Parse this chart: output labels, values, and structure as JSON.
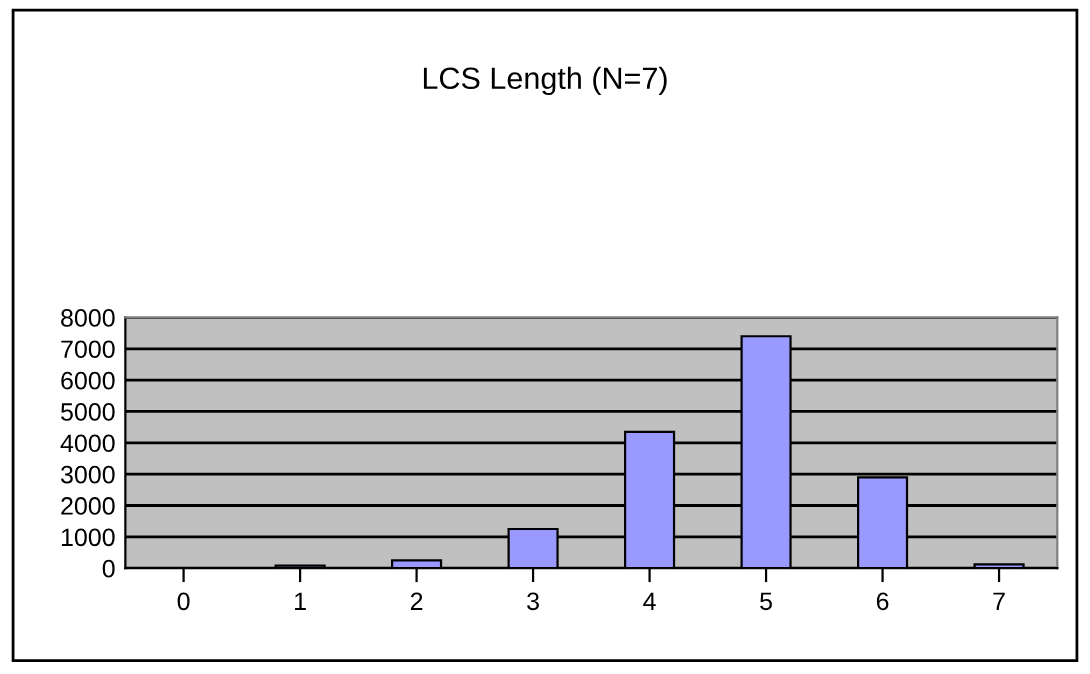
{
  "chart_data": {
    "type": "bar",
    "title": "LCS Length (N=7)",
    "categories": [
      "0",
      "1",
      "2",
      "3",
      "4",
      "5",
      "6",
      "7"
    ],
    "values": [
      0,
      80,
      250,
      1250,
      4350,
      7400,
      2900,
      120
    ],
    "color": "#9999ff",
    "ylim": [
      0,
      8000
    ],
    "yticks": [
      0,
      1000,
      2000,
      3000,
      4000,
      5000,
      6000,
      7000,
      8000
    ],
    "grid": "y",
    "legend": false
  }
}
